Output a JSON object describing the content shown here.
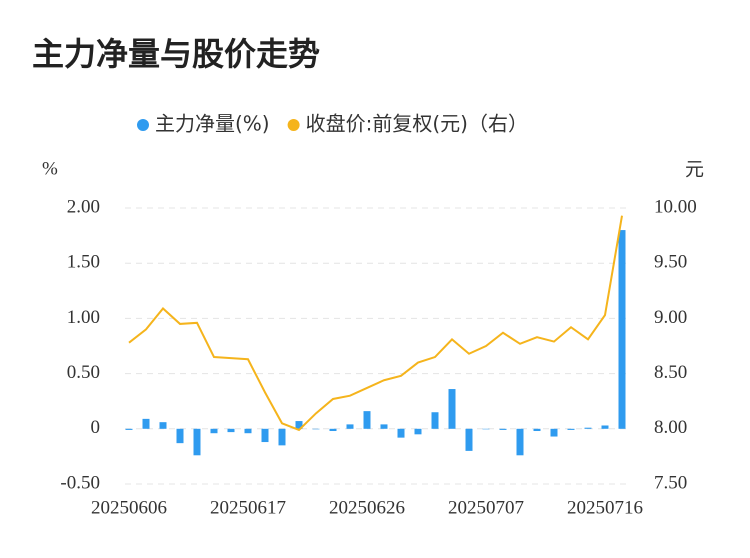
{
  "chart_data": {
    "type": "bar",
    "title": "主力净量与股价走势",
    "y_label": "%",
    "y2_label": "元",
    "categories": [
      "20250606",
      null,
      null,
      null,
      null,
      null,
      null,
      "20250617",
      null,
      null,
      null,
      null,
      null,
      null,
      "20250626",
      null,
      null,
      null,
      null,
      null,
      null,
      "20250707",
      null,
      null,
      null,
      null,
      null,
      null,
      "20250716",
      null
    ],
    "series": [
      {
        "name": "主力净量(%)",
        "type": "bar",
        "color": "#2f9bef",
        "values": [
          -0.01,
          0.09,
          0.06,
          -0.13,
          -0.24,
          -0.04,
          -0.03,
          -0.04,
          -0.12,
          -0.15,
          0.07,
          0.0,
          -0.02,
          0.04,
          0.16,
          0.04,
          -0.08,
          -0.05,
          0.15,
          0.36,
          -0.2,
          0.0,
          -0.01,
          -0.24,
          -0.02,
          -0.07,
          -0.01,
          0.01,
          0.03,
          1.8
        ]
      },
      {
        "name": "收盘价:前复权(元)（右）",
        "type": "line",
        "axis": "y2",
        "color": "#f5b41c",
        "values": [
          8.78,
          8.9,
          9.09,
          8.95,
          8.96,
          8.65,
          8.64,
          8.63,
          8.33,
          8.05,
          7.99,
          8.14,
          8.27,
          8.3,
          8.37,
          8.44,
          8.48,
          8.6,
          8.65,
          8.81,
          8.68,
          8.75,
          8.87,
          8.77,
          8.83,
          8.79,
          8.92,
          8.81,
          9.03,
          9.93
        ]
      }
    ],
    "ylim": [
      -0.5,
      2.0
    ],
    "yticks": [
      {
        "value": -0.5,
        "label": "-0.50"
      },
      0,
      {
        "value": 0.5,
        "label": "0.50"
      },
      {
        "value": 1.0,
        "label": "1.00"
      },
      {
        "value": 1.5,
        "label": "1.50"
      },
      {
        "value": 2.0,
        "label": "2.00"
      }
    ],
    "y2lim": [
      7.5,
      10.0
    ],
    "y2ticks": [
      {
        "value": 7.5,
        "label": "7.50"
      },
      {
        "value": 8.0,
        "label": "8.00"
      },
      {
        "value": 8.5,
        "label": "8.50"
      },
      {
        "value": 9.0,
        "label": "9.00"
      },
      {
        "value": 9.5,
        "label": "9.50"
      },
      {
        "value": 10.0,
        "label": "10.00"
      }
    ],
    "grid": true
  }
}
